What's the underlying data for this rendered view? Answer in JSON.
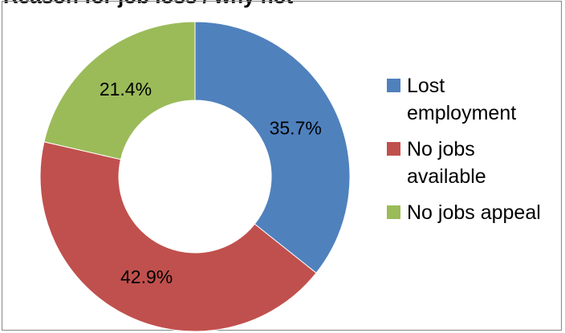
{
  "chart_data": {
    "type": "pie",
    "title": "Reason for job loss / why not",
    "donut": true,
    "categories": [
      "Lost employment",
      "No jobs available",
      "No jobs appeal"
    ],
    "values": [
      35.7,
      42.9,
      21.4
    ],
    "value_labels": [
      "35.7%",
      "42.9%",
      "21.4%"
    ],
    "colors": [
      "#4F81BD",
      "#C0504D",
      "#9BBB59"
    ],
    "legend_position": "right",
    "legend_lines": [
      [
        "Lost",
        "employment"
      ],
      [
        "No jobs",
        "available"
      ],
      [
        "No jobs appeal"
      ]
    ]
  }
}
